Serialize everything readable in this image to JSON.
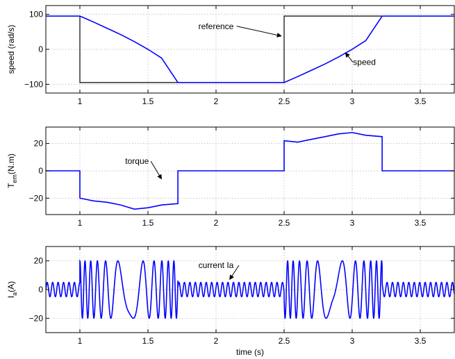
{
  "colors": {
    "signal": "#0000ff",
    "reference": "#000000",
    "axes": "#000000",
    "grid": "#b0b0b0"
  },
  "chart_data": [
    {
      "type": "line",
      "xlabel": "",
      "ylabel": "speed (rad/s)",
      "xlim": [
        0.75,
        3.75
      ],
      "ylim": [
        -125,
        125
      ],
      "grid": true,
      "xticks": [
        1,
        1.5,
        2,
        2.5,
        3,
        3.5
      ],
      "xtick_labels": [
        "1",
        "1.5",
        "2",
        "2.5",
        "3",
        "3.5"
      ],
      "yticks": [
        100,
        0,
        -100
      ],
      "ytick_labels": [
        "100",
        "0",
        "−100"
      ],
      "series": [
        {
          "name": "reference",
          "color": "#000000",
          "style": "step",
          "x": [
            0.75,
            1.0,
            1.0,
            2.5,
            2.5,
            3.75
          ],
          "y": [
            95,
            95,
            -95,
            -95,
            95,
            95
          ]
        },
        {
          "name": "speed",
          "color": "#0000ff",
          "x": [
            0.75,
            1.0,
            1.1,
            1.2,
            1.3,
            1.4,
            1.5,
            1.6,
            1.72,
            2.5,
            2.6,
            2.7,
            2.8,
            2.9,
            3.0,
            3.1,
            3.22,
            3.75
          ],
          "y": [
            95,
            95,
            78,
            60,
            42,
            22,
            0,
            -25,
            -95,
            -95,
            -78,
            -60,
            -42,
            -22,
            0,
            25,
            95,
            95
          ]
        }
      ],
      "annotations": [
        {
          "text": "reference",
          "x": 2.0,
          "y": 58,
          "arrow_to": [
            2.48,
            38
          ]
        },
        {
          "text": "speed",
          "x": 3.09,
          "y": -45,
          "arrow_to": [
            2.95,
            -10
          ]
        }
      ]
    },
    {
      "type": "line",
      "xlabel": "",
      "ylabel": "T_em(N.m)",
      "xlim": [
        0.75,
        3.75
      ],
      "ylim": [
        -32,
        32
      ],
      "grid": true,
      "xticks": [
        1,
        1.5,
        2,
        2.5,
        3,
        3.5
      ],
      "xtick_labels": [
        "1",
        "1.5",
        "2",
        "2.5",
        "3",
        "3.5"
      ],
      "yticks": [
        20,
        0,
        -20
      ],
      "ytick_labels": [
        "20",
        "0",
        "−20"
      ],
      "series": [
        {
          "name": "torque",
          "color": "#0000ff",
          "x": [
            0.75,
            1.0,
            1.0,
            1.1,
            1.2,
            1.3,
            1.4,
            1.5,
            1.6,
            1.72,
            1.72,
            2.5,
            2.5,
            2.6,
            2.7,
            2.8,
            2.9,
            3.0,
            3.1,
            3.22,
            3.22,
            3.75
          ],
          "y": [
            0,
            0,
            -20,
            -22,
            -23,
            -25,
            -28,
            -27,
            -25,
            -24,
            0,
            0,
            22,
            21,
            23,
            25,
            27,
            28,
            26,
            25,
            0,
            0
          ]
        }
      ],
      "annotations": [
        {
          "text": "torque",
          "x": 1.42,
          "y": 5,
          "arrow_to": [
            1.6,
            -6
          ]
        }
      ]
    },
    {
      "type": "line",
      "xlabel": "time (s)",
      "ylabel": "I_a(A)",
      "xlim": [
        0.75,
        3.75
      ],
      "ylim": [
        -30,
        30
      ],
      "grid": true,
      "xticks": [
        1,
        1.5,
        2,
        2.5,
        3,
        3.5
      ],
      "xtick_labels": [
        "1",
        "1.5",
        "2",
        "2.5",
        "3",
        "3.5"
      ],
      "yticks": [
        20,
        0,
        -20
      ],
      "ytick_labels": [
        "20",
        "0",
        "−20"
      ],
      "series": [
        {
          "name": "current Ia",
          "color": "#0000ff",
          "steady_amplitude": 5,
          "steady_frequency_hz": 25,
          "transient_amplitude": 20,
          "transients": [
            {
              "start": 1.0,
              "end": 1.72,
              "min_frequency_hz": 2,
              "max_frequency_hz": 28
            },
            {
              "start": 2.5,
              "end": 3.22,
              "min_frequency_hz": 2,
              "max_frequency_hz": 28
            }
          ]
        }
      ],
      "annotations": [
        {
          "text": "current Ia",
          "x": 2.0,
          "y": 15,
          "arrow_to": [
            2.1,
            7
          ]
        }
      ]
    }
  ]
}
